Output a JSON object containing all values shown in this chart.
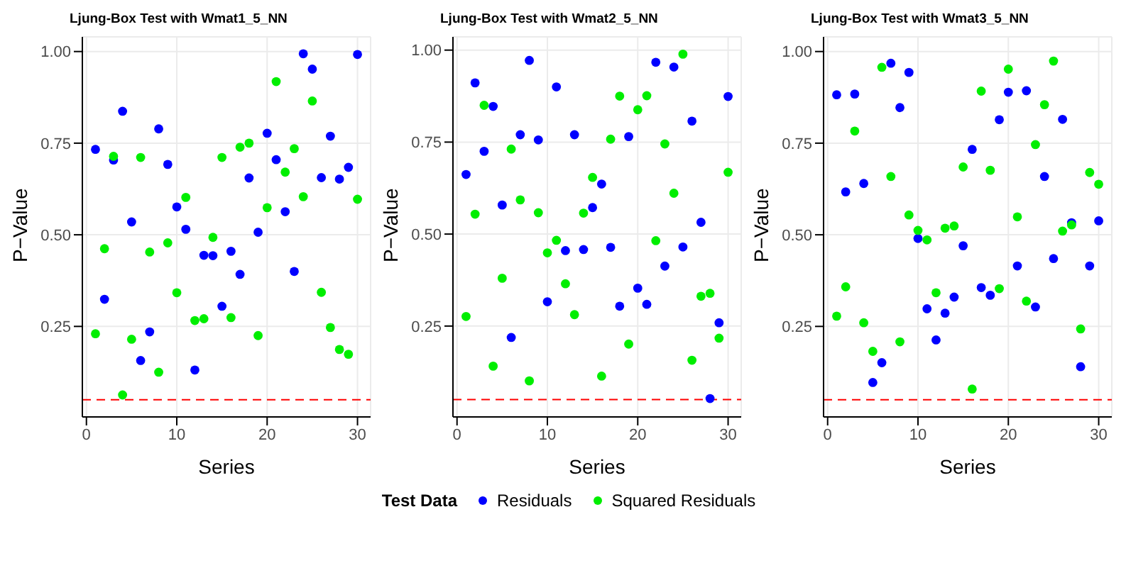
{
  "chart_data": [
    {
      "type": "scatter",
      "title": "Ljung-Box Test with Wmat1_5_NN",
      "xlabel": "Series",
      "ylabel": "P−Value",
      "x": [
        1,
        2,
        3,
        4,
        5,
        6,
        7,
        8,
        9,
        10,
        11,
        12,
        13,
        14,
        15,
        16,
        17,
        18,
        19,
        20,
        21,
        22,
        23,
        24,
        25,
        26,
        27,
        28,
        29,
        30
      ],
      "series": [
        {
          "name": "Residuals",
          "color": "#0000ff",
          "values": [
            0.733,
            0.324,
            0.704,
            0.837,
            0.535,
            0.157,
            0.235,
            0.789,
            0.692,
            0.576,
            0.515,
            0.131,
            0.444,
            0.443,
            0.305,
            0.455,
            0.392,
            0.655,
            0.507,
            0.777,
            0.705,
            0.563,
            0.4,
            0.994,
            0.952,
            0.656,
            0.769,
            0.652,
            0.684,
            0.992
          ]
        },
        {
          "name": "Squared Residuals",
          "color": "#00ee00",
          "values": [
            0.23,
            0.462,
            0.714,
            0.063,
            0.215,
            0.711,
            0.453,
            0.125,
            0.478,
            0.342,
            0.602,
            0.266,
            0.271,
            0.493,
            0.711,
            0.274,
            0.739,
            0.75,
            0.225,
            0.574,
            0.918,
            0.671,
            0.735,
            0.604,
            0.865,
            0.343,
            0.247,
            0.187,
            0.174,
            0.597
          ]
        }
      ],
      "xlim": [
        -0.45,
        31.45
      ],
      "xticks": [
        0,
        10,
        20,
        30
      ],
      "ylim": [
        0.003,
        1.04
      ],
      "yticks": [
        {
          "value": 0.25,
          "label": "0.25"
        },
        {
          "value": 0.5,
          "label": "0.50"
        },
        {
          "value": 0.75,
          "label": "0.75"
        },
        {
          "value": 1,
          "label": "1.00"
        }
      ],
      "ref_lines": [
        {
          "axis": "y",
          "value": 0.05,
          "color": "#ff0000",
          "line_style": "dashed"
        }
      ],
      "grid": true,
      "marker": "circle",
      "legend": "bottom",
      "legend_title": "Test Data"
    },
    {
      "type": "scatter",
      "title": "Ljung-Box Test with Wmat2_5_NN",
      "xlabel": "Series",
      "ylabel": "P−Value",
      "x": [
        1,
        2,
        3,
        4,
        5,
        6,
        7,
        8,
        9,
        10,
        11,
        12,
        13,
        14,
        15,
        16,
        17,
        18,
        19,
        20,
        21,
        22,
        23,
        24,
        25,
        26,
        27,
        28,
        29,
        30
      ],
      "series": [
        {
          "color": "#0000ff",
          "values": [
            0.662,
            0.911,
            0.725,
            0.847,
            0.579,
            0.219,
            0.77,
            0.972,
            0.756,
            0.316,
            0.9,
            0.455,
            0.77,
            0.458,
            0.572,
            0.636,
            0.464,
            0.304,
            0.765,
            0.353,
            0.309,
            0.967,
            0.413,
            0.954,
            0.465,
            0.807,
            0.532,
            0.053,
            0.259,
            0.874
          ]
        },
        {
          "color": "#00ee00",
          "values": [
            0.276,
            0.554,
            0.85,
            0.141,
            0.38,
            0.731,
            0.593,
            0.101,
            0.558,
            0.449,
            0.483,
            0.365,
            0.281,
            0.557,
            0.654,
            0.114,
            0.758,
            0.875,
            0.201,
            0.838,
            0.876,
            0.482,
            0.745,
            0.611,
            0.989,
            0.157,
            0.331,
            0.339,
            0.217,
            0.668
          ]
        }
      ],
      "xlim": [
        -0.45,
        31.45
      ],
      "xticks": [
        0,
        10,
        20,
        30
      ],
      "ylim": [
        0.003,
        1.036
      ],
      "yticks": [
        {
          "value": 0.25,
          "label": "0.25"
        },
        {
          "value": 0.5,
          "label": "0.50"
        },
        {
          "value": 0.75,
          "label": "0.75"
        },
        {
          "value": 1,
          "label": "1.00"
        }
      ],
      "ref_lines": [
        {
          "axis": "y",
          "value": 0.05,
          "color": "#ff0000",
          "line_style": "dashed"
        }
      ],
      "grid": true,
      "marker": "circle"
    },
    {
      "type": "scatter",
      "title": "Ljung-Box Test with Wmat3_5_NN",
      "xlabel": "Series",
      "ylabel": "P−Value",
      "x": [
        1,
        2,
        3,
        4,
        5,
        6,
        7,
        8,
        9,
        10,
        11,
        12,
        13,
        14,
        15,
        16,
        17,
        18,
        19,
        20,
        21,
        22,
        23,
        24,
        25,
        26,
        27,
        28,
        29,
        30
      ],
      "series": [
        {
          "color": "#0000ff",
          "values": [
            0.882,
            0.617,
            0.884,
            0.64,
            0.097,
            0.151,
            0.968,
            0.847,
            0.943,
            0.49,
            0.298,
            0.213,
            0.286,
            0.33,
            0.47,
            0.733,
            0.356,
            0.335,
            0.814,
            0.889,
            0.415,
            0.893,
            0.303,
            0.659,
            0.435,
            0.815,
            0.533,
            0.14,
            0.415,
            0.538
          ]
        },
        {
          "color": "#00ee00",
          "values": [
            0.278,
            0.358,
            0.783,
            0.26,
            0.182,
            0.957,
            0.659,
            0.208,
            0.554,
            0.512,
            0.486,
            0.342,
            0.518,
            0.524,
            0.685,
            0.079,
            0.892,
            0.676,
            0.353,
            0.952,
            0.549,
            0.319,
            0.746,
            0.855,
            0.974,
            0.51,
            0.527,
            0.243,
            0.67,
            0.638
          ]
        }
      ],
      "xlim": [
        -0.45,
        31.45
      ],
      "xticks": [
        0,
        10,
        20,
        30
      ],
      "ylim": [
        0.003,
        1.04
      ],
      "yticks": [
        {
          "value": 0.25,
          "label": "0.25"
        },
        {
          "value": 0.5,
          "label": "0.50"
        },
        {
          "value": 0.75,
          "label": "0.75"
        },
        {
          "value": 1,
          "label": "1.00"
        }
      ],
      "ref_lines": [
        {
          "axis": "y",
          "value": 0.05,
          "color": "#ff0000",
          "line_style": "dashed"
        }
      ],
      "grid": true,
      "marker": "circle"
    }
  ]
}
